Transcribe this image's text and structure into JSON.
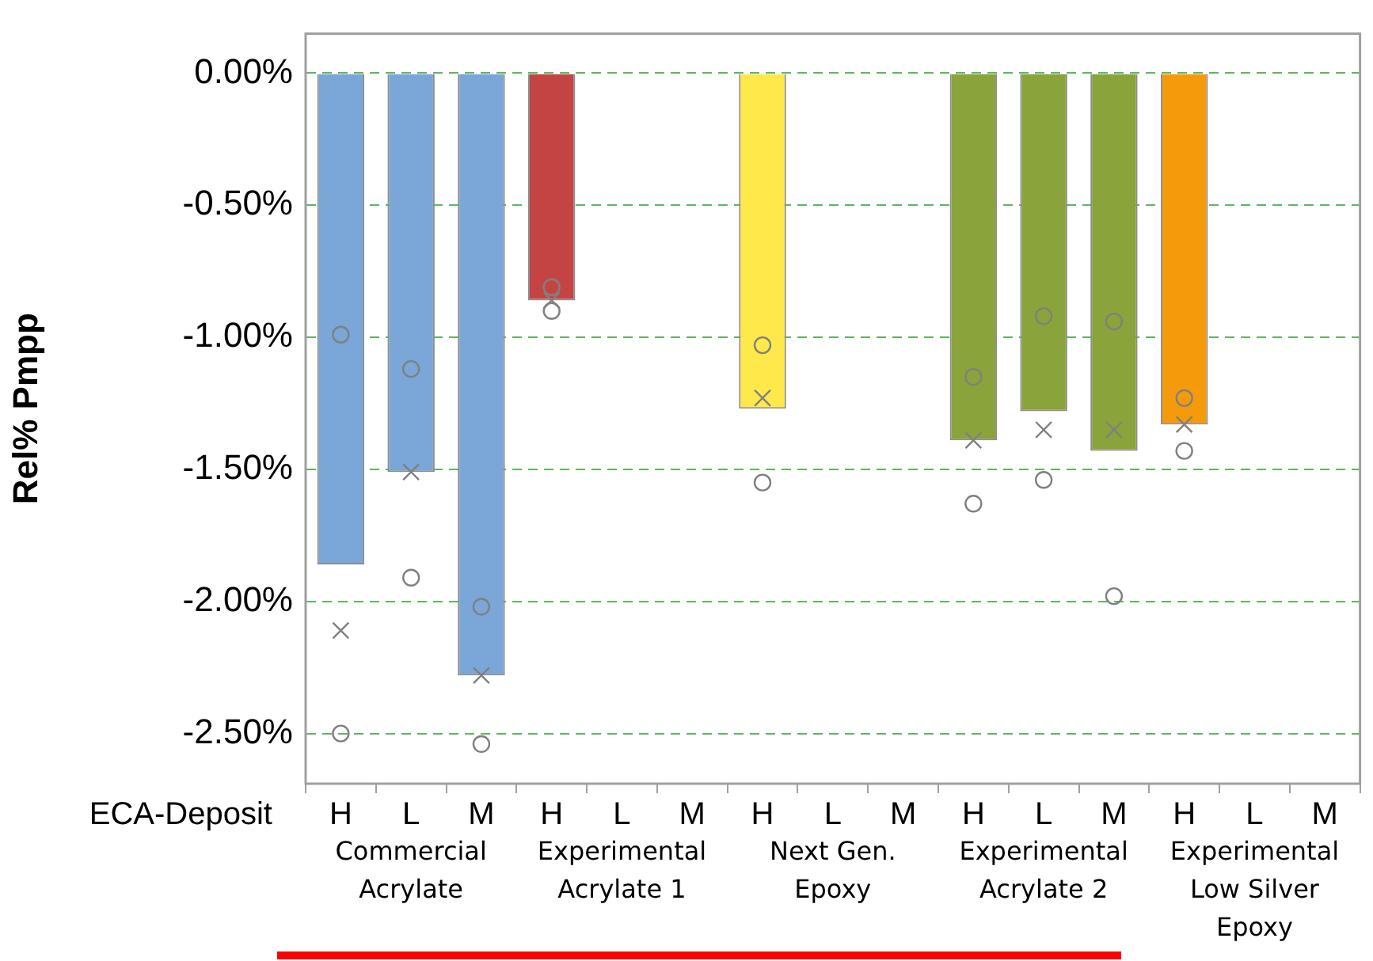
{
  "chart_data": {
    "type": "bar",
    "ylabel": "Rel% Pmpp",
    "xlabel": "ECA-Deposit",
    "categories": [
      "H",
      "L",
      "M",
      "H",
      "L",
      "M",
      "H",
      "L",
      "M",
      "H",
      "L",
      "M",
      "H",
      "L",
      "M"
    ],
    "series": [
      {
        "colors": [
          "#7aa6d8",
          "#7aa6d8",
          "#7aa6d8",
          "#c44444",
          "#c44444",
          "#c44444",
          "#ffe84a",
          "#ffe84a",
          "#ffe84a",
          "#8aa33a",
          "#8aa33a",
          "#8aa33a",
          "#f59a0a",
          "#f59a0a",
          "#f59a0a"
        ],
        "values": [
          -1.86,
          -1.51,
          -2.28,
          -0.86,
          null,
          null,
          -1.27,
          null,
          null,
          -1.39,
          -1.28,
          -1.43,
          -1.33,
          null,
          null
        ]
      },
      {
        "type": "scatter",
        "marker": "circle",
        "color": "#808080",
        "values": [
          -0.99,
          -1.12,
          -2.02,
          -0.81,
          null,
          null,
          -1.03,
          null,
          null,
          -1.15,
          -0.92,
          -0.94,
          -1.23,
          null,
          null
        ]
      },
      {
        "type": "scatter",
        "marker": "cross",
        "color": "#808080",
        "values": [
          -2.11,
          -1.51,
          -2.28,
          -0.86,
          null,
          null,
          -1.23,
          null,
          null,
          -1.39,
          -1.35,
          -1.35,
          -1.33,
          null,
          null
        ]
      },
      {
        "type": "scatter",
        "marker": "circle",
        "color": "#808080",
        "values": [
          -2.5,
          -1.91,
          -2.54,
          -0.9,
          null,
          null,
          -1.55,
          null,
          null,
          -1.63,
          -1.54,
          -1.98,
          -1.43,
          null,
          null
        ]
      }
    ],
    "ylim": [
      -2.69,
      0.15
    ],
    "yticks": [
      {
        "value": 0,
        "label": "0.00%"
      },
      {
        "value": -0.5,
        "label": "-0.50%"
      },
      {
        "value": -1,
        "label": "-1.00%"
      },
      {
        "value": -1.5,
        "label": "-1.50%"
      },
      {
        "value": -2,
        "label": "-2.00%"
      },
      {
        "value": -2.5,
        "label": "-2.50%"
      }
    ],
    "grid": "y",
    "legend": false,
    "annotations": [
      "Commercial Acrylate",
      "Experimental Acrylate 1",
      "Next Gen. Epoxy",
      "Experimental Acrylate 2",
      "Experimental Low Silver Epoxy"
    ]
  }
}
